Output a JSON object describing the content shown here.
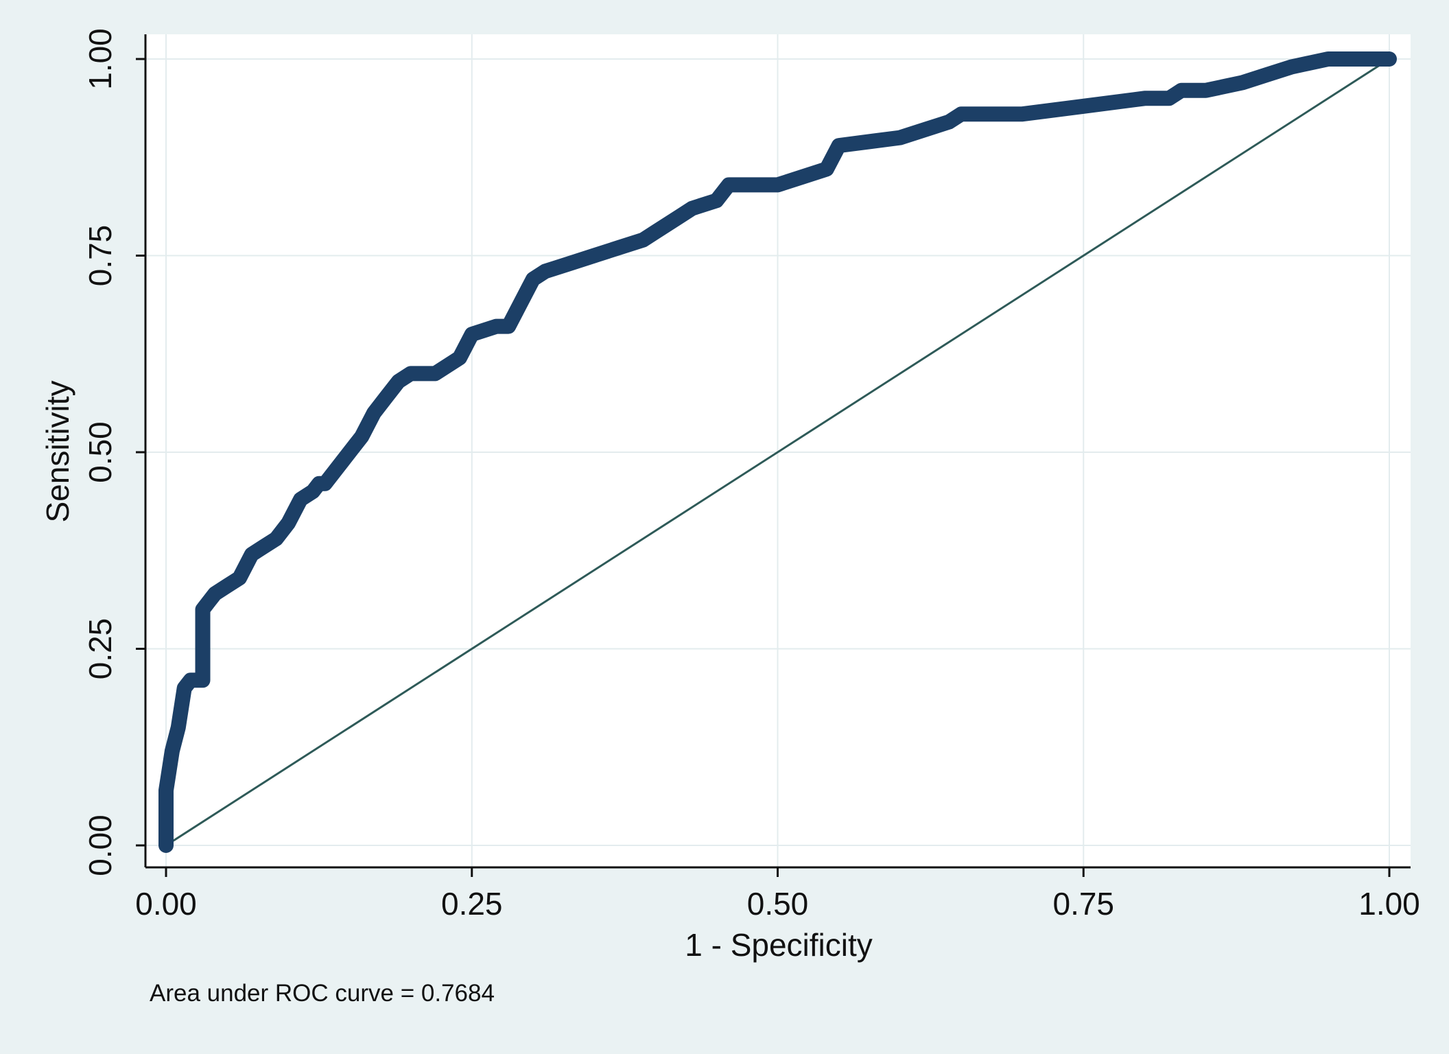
{
  "chart_data": {
    "type": "line",
    "xlabel": "1 - Specificity",
    "ylabel": "Sensitivity",
    "xlim": [
      0,
      1
    ],
    "ylim": [
      0,
      1
    ],
    "grid": true,
    "x_ticks": [
      0,
      0.25,
      0.5,
      0.75,
      1
    ],
    "x_tick_labels": [
      "0.00",
      "0.25",
      "0.50",
      "0.75",
      "1.00"
    ],
    "y_ticks": [
      0,
      0.25,
      0.5,
      0.75,
      1
    ],
    "y_tick_labels": [
      "0.00",
      "0.25",
      "0.50",
      "0.75",
      "1.00"
    ],
    "note": "Area under ROC curve = 0.7684",
    "series": [
      {
        "color": "#1c3f66",
        "x": [
          0,
          0,
          0.005,
          0.01,
          0.015,
          0.02,
          0.03,
          0.03,
          0.035,
          0.04,
          0.05,
          0.06,
          0.07,
          0.08,
          0.09,
          0.1,
          0.11,
          0.12,
          0.125,
          0.13,
          0.14,
          0.15,
          0.16,
          0.17,
          0.18,
          0.19,
          0.2,
          0.22,
          0.24,
          0.25,
          0.27,
          0.28,
          0.3,
          0.31,
          0.33,
          0.35,
          0.37,
          0.39,
          0.4,
          0.42,
          0.43,
          0.45,
          0.46,
          0.48,
          0.5,
          0.52,
          0.54,
          0.55,
          0.6,
          0.62,
          0.64,
          0.65,
          0.7,
          0.75,
          0.8,
          0.82,
          0.83,
          0.85,
          0.88,
          0.9,
          0.92,
          0.95,
          1
        ],
        "y": [
          0,
          0.07,
          0.12,
          0.15,
          0.2,
          0.21,
          0.21,
          0.3,
          0.31,
          0.32,
          0.33,
          0.34,
          0.37,
          0.38,
          0.39,
          0.41,
          0.44,
          0.45,
          0.46,
          0.46,
          0.48,
          0.5,
          0.52,
          0.55,
          0.57,
          0.59,
          0.6,
          0.6,
          0.62,
          0.65,
          0.66,
          0.66,
          0.72,
          0.73,
          0.74,
          0.75,
          0.76,
          0.77,
          0.78,
          0.8,
          0.81,
          0.82,
          0.84,
          0.84,
          0.84,
          0.85,
          0.86,
          0.89,
          0.9,
          0.91,
          0.92,
          0.93,
          0.93,
          0.94,
          0.95,
          0.95,
          0.96,
          0.96,
          0.97,
          0.98,
          0.99,
          1,
          1
        ]
      },
      {
        "color": "#2e5a58",
        "x": [
          0,
          1
        ],
        "y": [
          0,
          1
        ]
      }
    ]
  }
}
